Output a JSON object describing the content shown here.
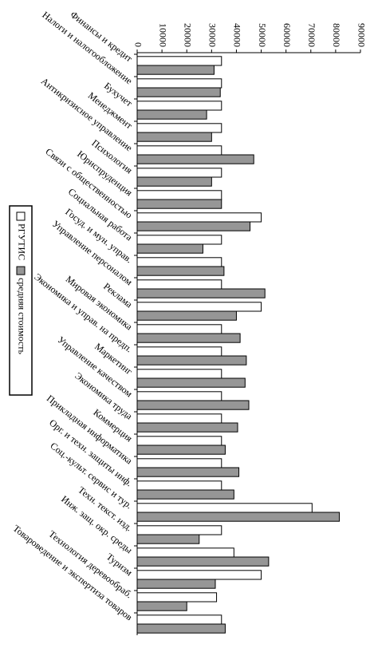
{
  "chart_data": {
    "type": "bar",
    "orientation": "horizontal",
    "categories": [
      "Финансы и кредит",
      "Налоги и налогообложение",
      "Бухучет",
      "Менеджмент",
      "Антикризисное управление",
      "Психология",
      "Юриспруденция",
      "Связи с общественностью",
      "Социальная работа",
      "Госуд. и мун. управ.",
      "Управление персоналом",
      "Реклама",
      "Мировая экономика",
      "Экономика и управ. на предп.",
      "Маркетинг",
      "Управление качеством",
      "Экономика труда",
      "Коммерция",
      "Прикладная информатика",
      "Орг. и техн. защиты инф.",
      "Соц.-культ. сервис и тур.",
      "Техн. текст. изд.",
      "Инж. защ. окр. среды",
      "Туризм",
      "Технология деревообраб.",
      "Товароведение и экспертиза товаров"
    ],
    "series": [
      {
        "name": "РГУТИС",
        "color": "#ffffff",
        "values": [
          34000,
          34000,
          34000,
          34000,
          34000,
          34000,
          34000,
          50000,
          34000,
          34000,
          34000,
          50000,
          34000,
          34000,
          34000,
          34000,
          34000,
          34000,
          34000,
          34000,
          70500,
          34000,
          39000,
          50000,
          32000,
          34000
        ]
      },
      {
        "name": "средняя стоимость",
        "color": "#969696",
        "values": [
          31000,
          33500,
          28000,
          30000,
          47000,
          30000,
          34000,
          45500,
          26500,
          35000,
          51500,
          40000,
          41500,
          44000,
          43500,
          45000,
          40500,
          35500,
          41000,
          39000,
          81500,
          25000,
          53000,
          31500,
          20000,
          35500
        ]
      }
    ],
    "ylim": [
      0,
      90000
    ],
    "yticks": [
      0,
      10000,
      20000,
      30000,
      40000,
      50000,
      60000,
      70000,
      80000,
      90000
    ],
    "grid": false,
    "legend": "left"
  }
}
